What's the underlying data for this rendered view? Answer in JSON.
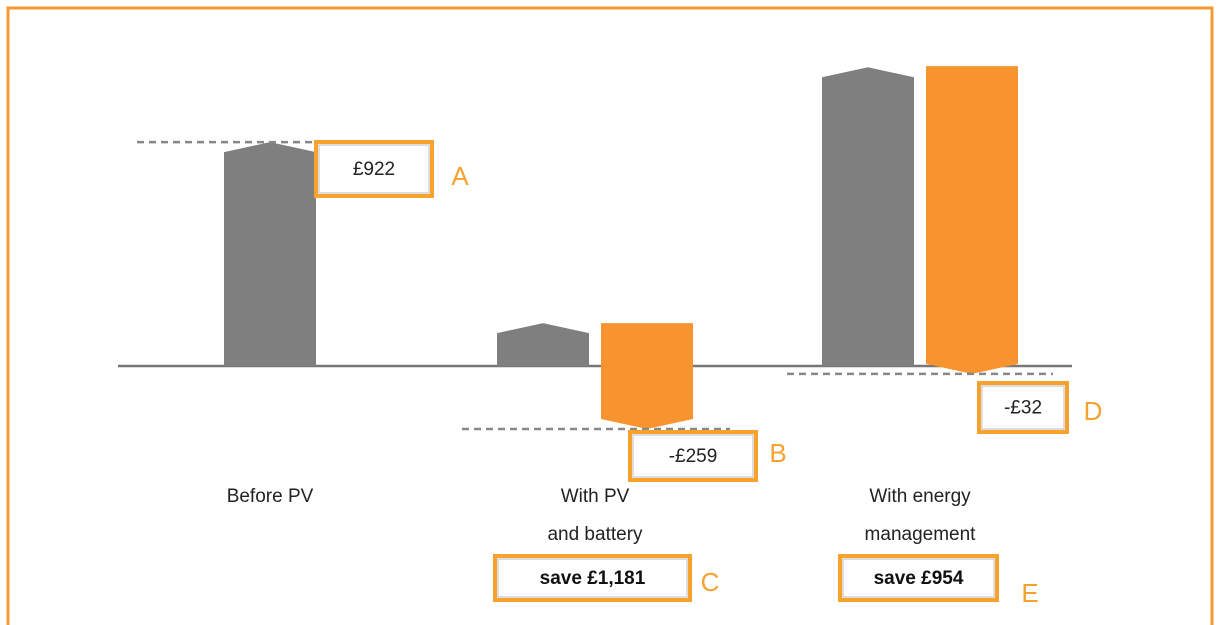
{
  "chart_data": {
    "type": "bar",
    "categories": [
      [
        "Before PV"
      ],
      [
        "With PV",
        "and battery"
      ],
      [
        "With energy",
        "management"
      ]
    ],
    "series": [
      {
        "color": "#7f7f7f",
        "values": [
          922,
          177,
          1230
        ],
        "value_labels": [
          "£922",
          null,
          null
        ],
        "value_letters": [
          "A",
          null,
          null
        ]
      },
      {
        "color": "#f7942f",
        "values": [
          null,
          [
            177,
            -259
          ],
          [
            1235,
            -32
          ]
        ],
        "value_labels": [
          null,
          "-£259",
          "-£32"
        ],
        "value_letters": [
          null,
          "B",
          "D"
        ]
      }
    ],
    "savings": [
      null,
      {
        "label": "save £1,181",
        "letter": "C"
      },
      {
        "label": "save £954",
        "letter": "E"
      }
    ],
    "ylim": [
      -1000,
      1400
    ]
  }
}
